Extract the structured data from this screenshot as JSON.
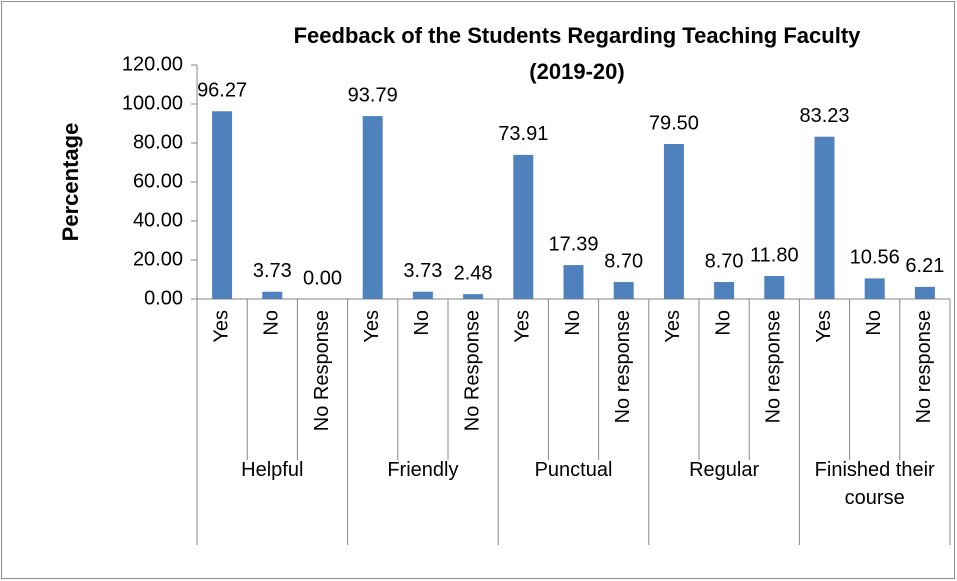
{
  "chart_data": {
    "type": "bar",
    "title": "Feedback of the Students Regarding Teaching Faculty",
    "subtitle": "(2019-20)",
    "ylabel": "Percentage",
    "categories": [
      "Yes",
      "No",
      "No Response",
      "Yes",
      "No",
      "No Response",
      "Yes",
      "No",
      "No response",
      "Yes",
      "No",
      "No response",
      "Yes",
      "No",
      "No response"
    ],
    "groups": [
      "Helpful",
      "Friendly",
      "Punctual",
      "Regular",
      "Finished their course"
    ],
    "values": [
      96.27,
      3.73,
      0,
      93.79,
      3.73,
      2.48,
      73.91,
      17.39,
      8.7,
      79.5,
      8.7,
      11.8,
      83.23,
      10.56,
      6.21
    ],
    "value_labels": [
      "96.27",
      "3.73",
      "0.00",
      "93.79",
      "3.73",
      "2.48",
      "73.91",
      "17.39",
      "8.70",
      "79.50",
      "8.70",
      "11.80",
      "83.23",
      "10.56",
      "6.21"
    ],
    "color": "#4f81bd",
    "ylim": [
      0,
      120
    ],
    "yticks": [
      {
        "value": 0,
        "label": "0.00"
      },
      {
        "value": 20,
        "label": "20.00"
      },
      {
        "value": 40,
        "label": "40.00"
      },
      {
        "value": 60,
        "label": "60.00"
      },
      {
        "value": 80,
        "label": "80.00"
      },
      {
        "value": 100,
        "label": "100.00"
      },
      {
        "value": 120,
        "label": "120.00"
      }
    ]
  }
}
